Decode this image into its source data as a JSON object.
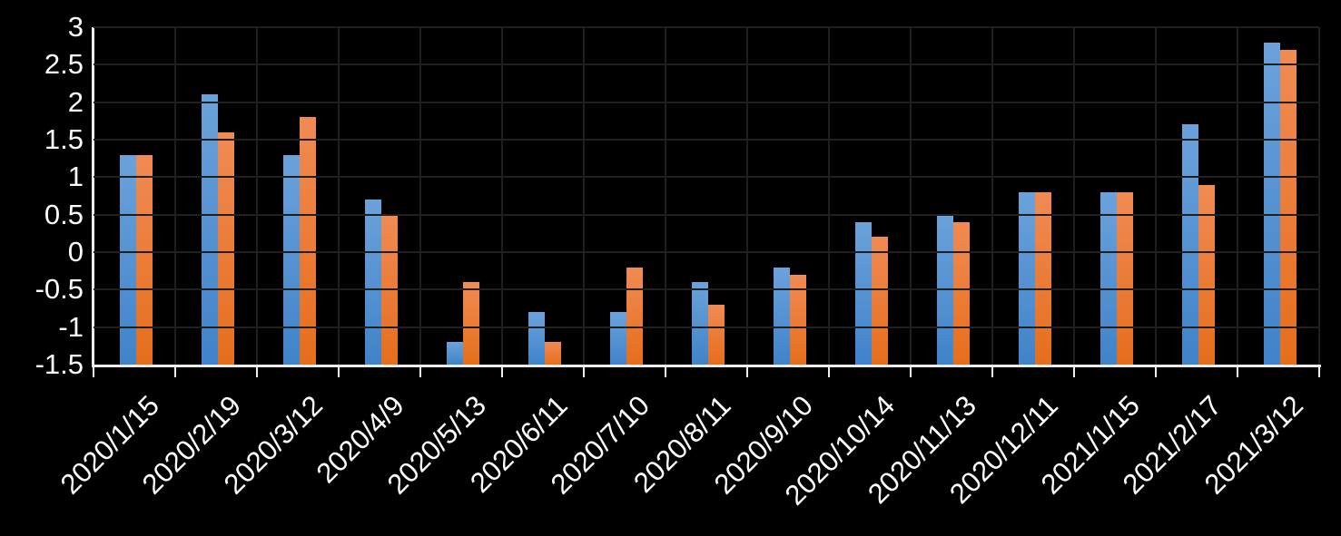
{
  "chart_data": {
    "type": "bar",
    "title": "",
    "xlabel": "",
    "ylabel": "",
    "categories": [
      "2020/1/15",
      "2020/2/19",
      "2020/3/12",
      "2020/4/9",
      "2020/5/13",
      "2020/6/11",
      "2020/7/10",
      "2020/8/11",
      "2020/9/10",
      "2020/10/14",
      "2020/11/13",
      "2020/12/11",
      "2021/1/15",
      "2021/2/17",
      "2021/3/12"
    ],
    "series": [
      {
        "name": "blue",
        "color": "#5B9BD5",
        "values": [
          1.3,
          2.1,
          1.3,
          0.7,
          -1.2,
          -0.8,
          -0.8,
          -0.4,
          -0.2,
          0.4,
          0.5,
          0.8,
          0.8,
          1.7,
          2.8
        ]
      },
      {
        "name": "orange",
        "color": "#ED7D31",
        "values": [
          1.3,
          1.6,
          1.8,
          0.5,
          -0.4,
          -1.2,
          -0.2,
          -0.7,
          -0.3,
          0.2,
          0.4,
          0.8,
          0.8,
          0.9,
          2.7
        ]
      }
    ],
    "ylim": [
      -1.5,
      3
    ],
    "yticks": [
      {
        "value": 3,
        "label": "3"
      },
      {
        "value": 2.5,
        "label": "2.5"
      },
      {
        "value": 2,
        "label": "2"
      },
      {
        "value": 1.5,
        "label": "1.5"
      },
      {
        "value": 1,
        "label": "1"
      },
      {
        "value": 0.5,
        "label": "0.5"
      },
      {
        "value": 0,
        "label": "0"
      },
      {
        "value": -0.5,
        "label": "-0.5"
      },
      {
        "value": -1,
        "label": "-1"
      },
      {
        "value": -1.5,
        "label": "-1.5"
      }
    ],
    "bar_baseline": -1.5,
    "grid": "horizontal-and-vertical",
    "legend": "none",
    "colors": {
      "background": "#000000",
      "gridline": "#1F1F1F",
      "axis_line": "#EDEDED",
      "tick_label": "#FFFFFF"
    }
  }
}
